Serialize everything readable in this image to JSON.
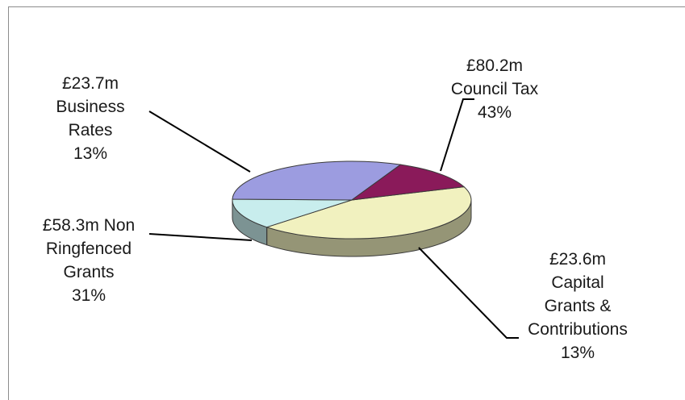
{
  "chart_data": {
    "type": "pie",
    "title": "",
    "three_d": true,
    "slices": [
      {
        "category": "Council Tax",
        "value": 80.2,
        "value_label": "£80.2m",
        "percent_label": "43%",
        "label_lines": [
          "£80.2m",
          "Council Tax",
          "43%"
        ],
        "color": "#f1f1bf"
      },
      {
        "category": "Capital Grants & Contributions",
        "value": 23.6,
        "value_label": "£23.6m",
        "percent_label": "13%",
        "label_lines": [
          "£23.6m",
          "Capital",
          "Grants &",
          "Contributions",
          "13%"
        ],
        "color": "#c8eded"
      },
      {
        "category": "Non Ringfenced Grants",
        "value": 58.3,
        "value_label": "£58.3m",
        "percent_label": "31%",
        "label_lines": [
          "£58.3m Non",
          "Ringfenced",
          "Grants",
          "31%"
        ],
        "color": "#9c9ce0"
      },
      {
        "category": "Business Rates",
        "value": 23.7,
        "value_label": "£23.7m",
        "percent_label": "13%",
        "label_lines": [
          "£23.7m",
          "Business",
          "Rates",
          "13%"
        ],
        "color": "#8a1a5a"
      }
    ],
    "legend": "none"
  }
}
